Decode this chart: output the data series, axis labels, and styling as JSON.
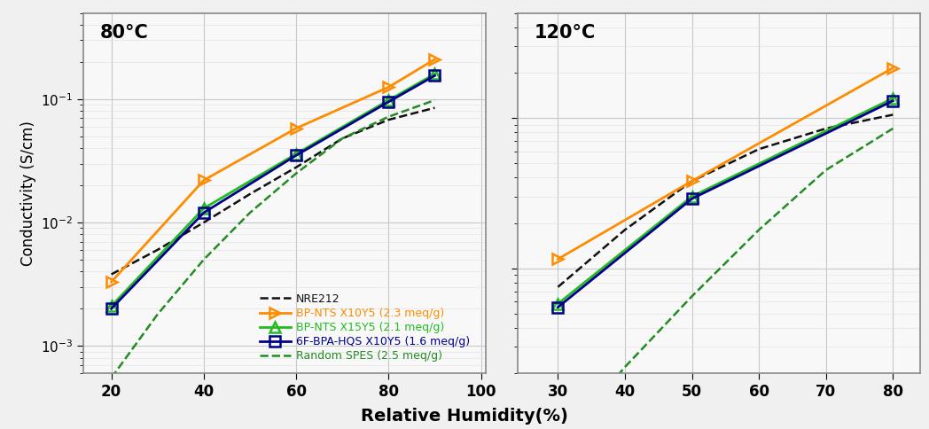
{
  "panel1": {
    "title": "80°C",
    "xlim": [
      14,
      101
    ],
    "xticks": [
      20,
      40,
      60,
      80,
      100
    ],
    "ylim": [
      0.0006,
      0.5
    ],
    "series": {
      "NRE212": {
        "x": [
          20,
          30,
          40,
          50,
          60,
          70,
          80,
          90
        ],
        "y": [
          0.0038,
          0.006,
          0.01,
          0.017,
          0.028,
          0.048,
          0.068,
          0.085
        ],
        "color": "#111111",
        "linestyle": "--",
        "marker": null,
        "lw": 1.8
      },
      "BP-NTS X10Y5 (2.3 meq/g)": {
        "x": [
          20,
          40,
          60,
          80,
          90
        ],
        "y": [
          0.0033,
          0.022,
          0.058,
          0.125,
          0.21
        ],
        "color": "#FF8C00",
        "linestyle": "-",
        "marker": "triangle_right",
        "lw": 2.0
      },
      "BP-NTS X15Y5 (2.1 meq/g)": {
        "x": [
          20,
          40,
          60,
          80,
          90
        ],
        "y": [
          0.0021,
          0.013,
          0.036,
          0.098,
          0.16
        ],
        "color": "#22BB22",
        "linestyle": "-",
        "marker": "triangle_up",
        "lw": 2.0
      },
      "6F-BPA-HQS X10Y5 (1.6 meq/g)": {
        "x": [
          20,
          40,
          60,
          80,
          90
        ],
        "y": [
          0.002,
          0.012,
          0.035,
          0.095,
          0.155
        ],
        "color": "#00008B",
        "linestyle": "-",
        "marker": "square",
        "lw": 2.0
      },
      "Random SPES (2.5 meq/g)": {
        "x": [
          20,
          30,
          40,
          50,
          60,
          70,
          80,
          90
        ],
        "y": [
          0.00055,
          0.0018,
          0.005,
          0.012,
          0.025,
          0.048,
          0.072,
          0.098
        ],
        "color": "#228B22",
        "linestyle": "--",
        "marker": null,
        "lw": 1.8
      }
    }
  },
  "panel2": {
    "title": "120°C",
    "xlim": [
      24,
      84
    ],
    "xticks": [
      30,
      40,
      50,
      60,
      70,
      80
    ],
    "ylim": [
      0.002,
      0.5
    ],
    "series": {
      "NRE212": {
        "x": [
          30,
          40,
          50,
          60,
          70,
          80
        ],
        "y": [
          0.0075,
          0.018,
          0.038,
          0.062,
          0.085,
          0.105
        ],
        "color": "#111111",
        "linestyle": "--",
        "marker": null,
        "lw": 1.8
      },
      "BP-NTS X10Y5 (2.3 meq/g)": {
        "x": [
          30,
          50,
          80
        ],
        "y": [
          0.0115,
          0.038,
          0.215
        ],
        "color": "#FF8C00",
        "linestyle": "-",
        "marker": "triangle_right",
        "lw": 2.0
      },
      "BP-NTS X15Y5 (2.1 meq/g)": {
        "x": [
          30,
          50,
          80
        ],
        "y": [
          0.0058,
          0.03,
          0.135
        ],
        "color": "#22BB22",
        "linestyle": "-",
        "marker": "triangle_up",
        "lw": 2.0
      },
      "6F-BPA-HQS X10Y5 (1.6 meq/g)": {
        "x": [
          30,
          50,
          80
        ],
        "y": [
          0.0055,
          0.029,
          0.13
        ],
        "color": "#00008B",
        "linestyle": "-",
        "marker": "square",
        "lw": 2.0
      },
      "Random SPES (2.5 meq/g)": {
        "x": [
          30,
          40,
          50,
          60,
          70,
          80
        ],
        "y": [
          0.00065,
          0.0022,
          0.0065,
          0.018,
          0.045,
          0.085
        ],
        "color": "#228B22",
        "linestyle": "--",
        "marker": null,
        "lw": 1.8
      }
    }
  },
  "legend_order": [
    "NRE212",
    "BP-NTS X10Y5 (2.3 meq/g)",
    "BP-NTS X15Y5 (2.1 meq/g)",
    "6F-BPA-HQS X10Y5 (1.6 meq/g)",
    "Random SPES (2.5 meq/g)"
  ],
  "xlabel": "Relative Humidity(%)",
  "ylabel": "Conductivity (S/cm)",
  "background_color": "#f0f0f0",
  "plot_bg_color": "#f8f8f8",
  "legend_text_colors": {
    "NRE212": "#111111",
    "BP-NTS X10Y5 (2.3 meq/g)": "#FF8C00",
    "BP-NTS X15Y5 (2.1 meq/g)": "#22BB22",
    "6F-BPA-HQS X10Y5 (1.6 meq/g)": "#00008B",
    "Random SPES (2.5 meq/g)": "#228B22"
  }
}
